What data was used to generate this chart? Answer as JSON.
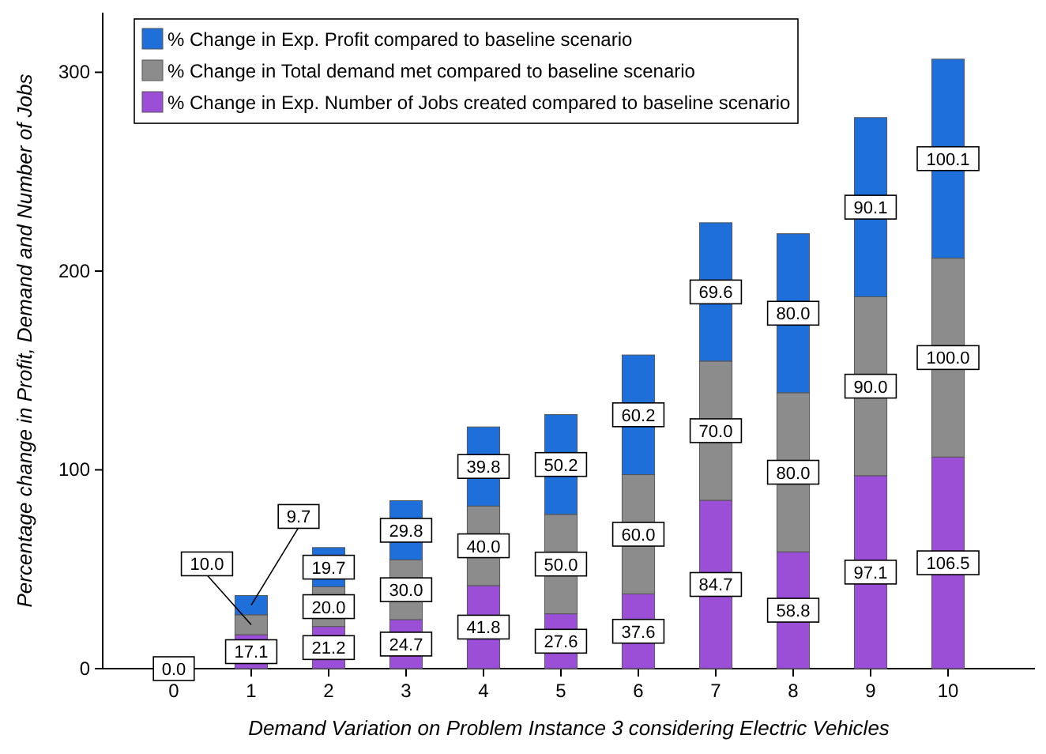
{
  "chart_data": {
    "type": "bar",
    "stacked": true,
    "xlabel": "Demand Variation on Problem Instance 3 considering Electric Vehicles",
    "ylabel": "Percentage change in Profit, Demand and Number of Jobs",
    "categories": [
      "0",
      "1",
      "2",
      "3",
      "4",
      "5",
      "6",
      "7",
      "8",
      "9",
      "10"
    ],
    "series": [
      {
        "name": "% Change in Exp. Number of Jobs created compared to baseline scenario",
        "color": "#9b4fd6",
        "values": [
          0,
          17.1,
          21.2,
          24.7,
          41.8,
          27.6,
          37.6,
          84.7,
          58.8,
          97.1,
          106.5
        ],
        "value_labels": [
          "0.0",
          "17.1",
          "21.2",
          "24.7",
          "41.8",
          "27.6",
          "37.6",
          "84.7",
          "58.8",
          "97.1",
          "106.5"
        ]
      },
      {
        "name": "% Change in Total demand met compared to baseline scenario",
        "color": "#8c8c8c",
        "values": [
          0,
          10.0,
          20.0,
          30.0,
          40.0,
          50.0,
          60.0,
          70.0,
          80.0,
          90.0,
          100.0
        ],
        "value_labels": [
          null,
          "10.0",
          "20.0",
          "30.0",
          "40.0",
          "50.0",
          "60.0",
          "70.0",
          "80.0",
          "90.0",
          "100.0"
        ]
      },
      {
        "name": "% Change in Exp. Profit compared to baseline scenario",
        "color": "#1e6fd9",
        "values": [
          0,
          9.7,
          19.7,
          29.8,
          39.8,
          50.2,
          60.2,
          69.6,
          80.0,
          90.1,
          100.1
        ],
        "value_labels": [
          null,
          "9.7",
          "19.7",
          "29.8",
          "39.8",
          "50.2",
          "60.2",
          "69.6",
          "80.0",
          "90.1",
          "100.1"
        ]
      }
    ],
    "ylim": [
      0,
      330
    ],
    "yticks": [
      0,
      100,
      200,
      300
    ],
    "grid": false,
    "legend": "top left"
  }
}
